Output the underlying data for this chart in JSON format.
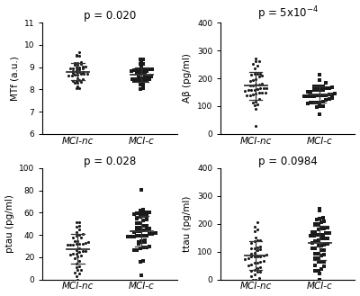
{
  "panels": [
    {
      "title": "p = 0.020",
      "ylabel": "MTf (a.u.)",
      "ylim": [
        6,
        11
      ],
      "yticks": [
        6,
        7,
        8,
        9,
        10,
        11
      ],
      "group1_label": "MCI-nc",
      "group2_label": "MCI-c",
      "group1_marker": "o",
      "group2_marker": "s",
      "group1_mean": 8.88,
      "group1_std": 0.42,
      "group2_mean": 8.75,
      "group2_std": 0.35,
      "group1_n": 42,
      "group2_n": 40,
      "group1_seed": 42,
      "group2_seed": 77,
      "bin_width": 0.12
    },
    {
      "title": "p = 5x10$^{-4}$",
      "ylabel": "Aβ (pg/ml)",
      "ylim": [
        0,
        400
      ],
      "yticks": [
        0,
        100,
        200,
        300,
        400
      ],
      "group1_label": "MCI-nc",
      "group2_label": "MCI-c",
      "group1_marker": "o",
      "group2_marker": "s",
      "group1_mean": 175,
      "group1_std": 55,
      "group2_mean": 142,
      "group2_std": 28,
      "group1_n": 42,
      "group2_n": 40,
      "group1_seed": 11,
      "group2_seed": 22,
      "bin_width": 20
    },
    {
      "title": "p = 0.028",
      "ylabel": "ptau (pg/ml)",
      "ylim": [
        0,
        100
      ],
      "yticks": [
        0,
        20,
        40,
        60,
        80,
        100
      ],
      "group1_label": "MCI-nc",
      "group2_label": "MCI-c",
      "group1_marker": "o",
      "group2_marker": "s",
      "group1_mean": 28,
      "group1_std": 14,
      "group2_mean": 42,
      "group2_std": 13,
      "group1_n": 42,
      "group2_n": 52,
      "group1_seed": 55,
      "group2_seed": 66,
      "bin_width": 4
    },
    {
      "title": "p = 0.0984",
      "ylabel": "ttau (pg/ml)",
      "ylim": [
        0,
        400
      ],
      "yticks": [
        0,
        100,
        200,
        300,
        400
      ],
      "group1_label": "MCI-nc",
      "group2_label": "MCI-c",
      "group1_marker": "o",
      "group2_marker": "s",
      "group1_mean": 95,
      "group1_std": 55,
      "group2_mean": 135,
      "group2_std": 60,
      "group1_n": 42,
      "group2_n": 52,
      "group1_seed": 33,
      "group2_seed": 44,
      "bin_width": 20
    }
  ],
  "background_color": "#ffffff",
  "dot_color": "#1a1a1a",
  "error_color": "#555555",
  "title_fontsize": 8.5,
  "label_fontsize": 7.5,
  "tick_fontsize": 6.5
}
